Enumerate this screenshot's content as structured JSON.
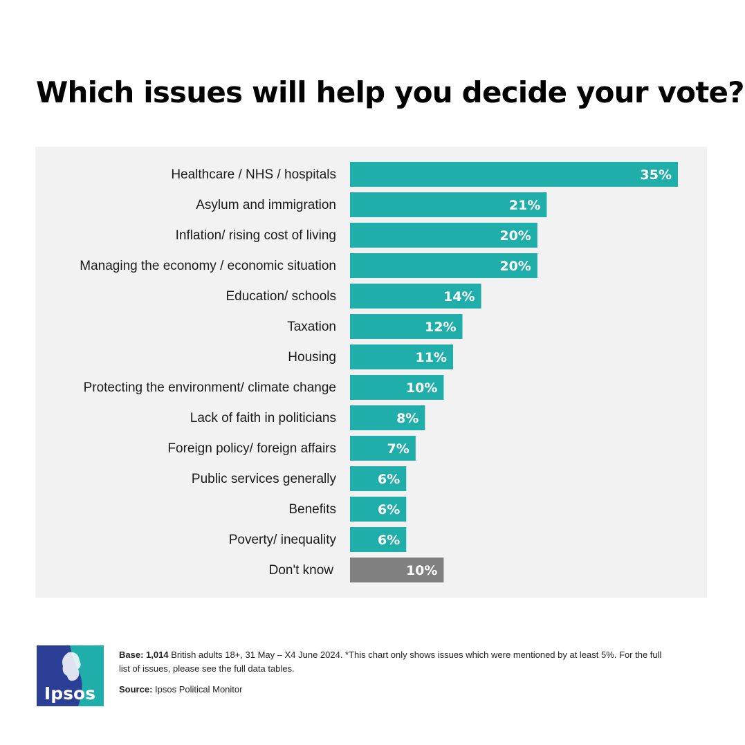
{
  "title": "Which issues will help you decide your vote?",
  "colors": {
    "bar": "#20aeaa",
    "bar_dont_know": "#808080",
    "panel": "#f2f2f2",
    "label": "#1a1a1a",
    "value": "#ffffff"
  },
  "chart_data": {
    "type": "bar",
    "orientation": "horizontal",
    "title": "Which issues will help you decide your vote?",
    "categories": [
      "Healthcare /  NHS /  hospitals",
      "Asylum and immigration",
      "Inflation/ rising cost of living",
      "Managing the economy / economic situation",
      "Education/ schools",
      "Taxation",
      "Housing",
      "Protecting the environment/ climate change",
      "Lack of faith in politicians",
      "Foreign policy/ foreign affairs",
      "Public services generally",
      "Benefits",
      "Poverty/ inequality",
      "Don't know"
    ],
    "values": [
      35,
      21,
      20,
      20,
      14,
      12,
      11,
      10,
      8,
      7,
      6,
      6,
      6,
      10
    ],
    "value_labels": [
      "35%",
      "21%",
      "20%",
      "20%",
      "14%",
      "12%",
      "11%",
      "10%",
      "8%",
      "7%",
      "6%",
      "6%",
      "6%",
      "10%"
    ],
    "highlight": {
      "category": "Don't know",
      "color": "#808080"
    },
    "unit": "%",
    "xlim": [
      0,
      35
    ],
    "grid": false,
    "legend": "none"
  },
  "footer": {
    "base_label": "Base:",
    "base_count": "1,014",
    "base_text": " British adults 18+, 31 May – X4 June 2024. *This chart only shows issues which were mentioned by at least 5%. For the full",
    "base_text_2": "list of issues, please see the full data tables.",
    "source_label": "Source:",
    "source_text": " Ipsos Political Monitor"
  },
  "logo": {
    "text": "Ipsos",
    "colors": [
      "#2c3f97",
      "#20aeaa"
    ]
  }
}
